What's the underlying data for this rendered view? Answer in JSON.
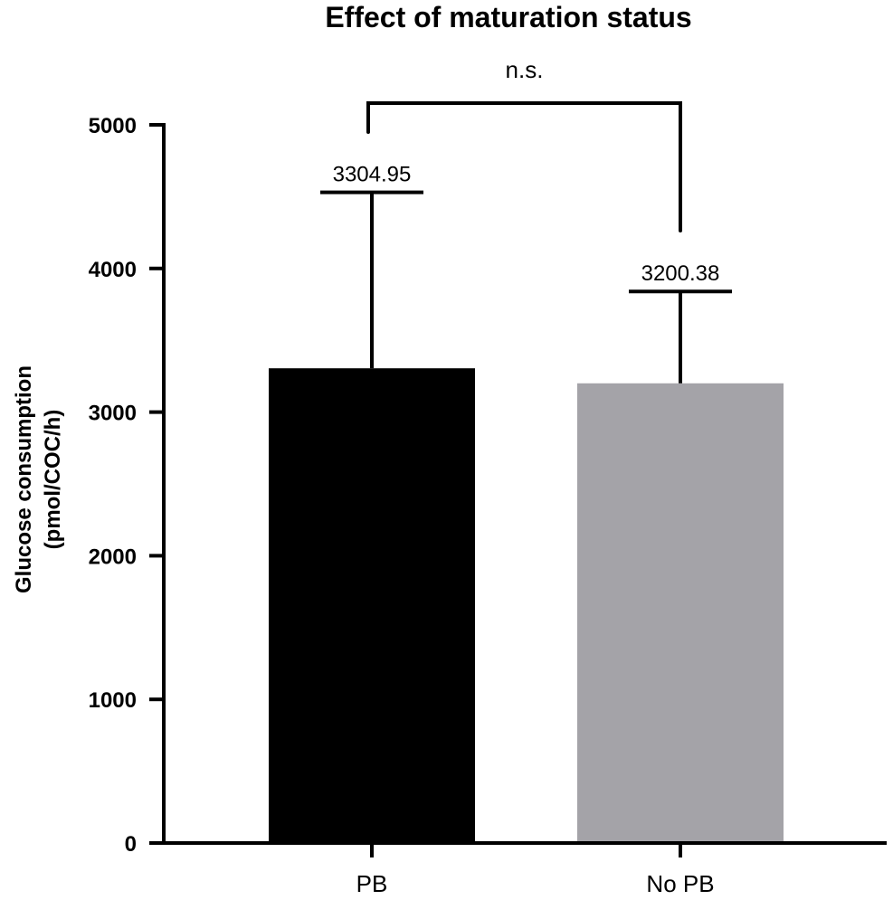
{
  "chart_data": {
    "type": "bar",
    "title": "Effect of maturation status",
    "xlabel": "",
    "ylabel_lines": [
      "Glucose consumption",
      "(pmol/COC/h)"
    ],
    "categories": [
      "PB",
      "No PB"
    ],
    "values": [
      3304.95,
      3200.38
    ],
    "error_upper": [
      4530,
      3840
    ],
    "data_labels": [
      "3304.95",
      "3200.38"
    ],
    "bar_colors": [
      "#000000",
      "#a4a3a8"
    ],
    "ylim": [
      0,
      5000
    ],
    "yticks": [
      0,
      1000,
      2000,
      3000,
      4000,
      5000
    ],
    "ytick_labels": [
      "0",
      "1000",
      "2000",
      "3000",
      "4000",
      "5000"
    ],
    "grid": false,
    "legend": "none",
    "significance": {
      "label": "n.s.",
      "between": [
        "PB",
        "No PB"
      ]
    }
  }
}
